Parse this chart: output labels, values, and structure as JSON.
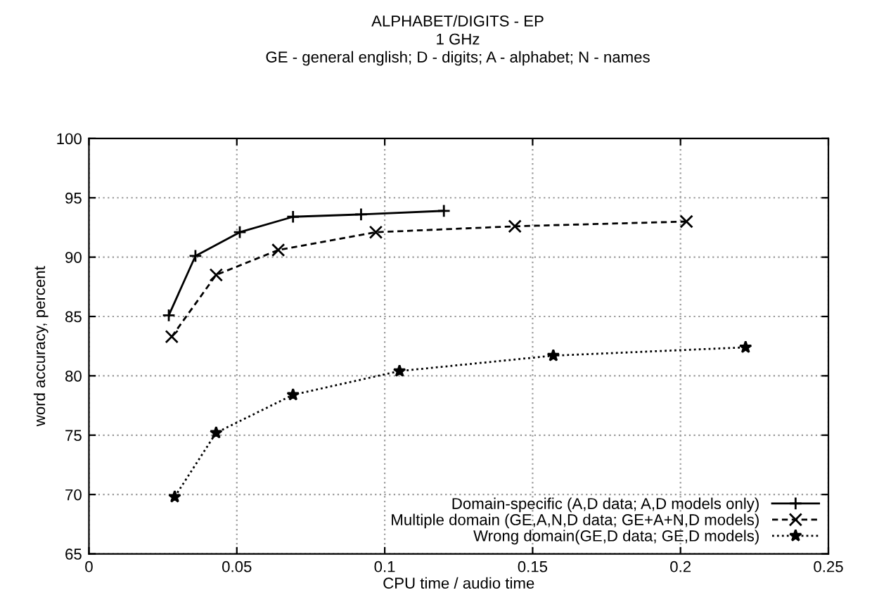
{
  "chart_data": {
    "type": "line",
    "title": "ALPHABET/DIGITS - EP",
    "subtitle": "1 GHz\nGE - general english; D - digits; A - alphabet; N - names",
    "xlabel": "CPU time / audio time",
    "ylabel": "word accuracy, percent",
    "xlim": [
      0,
      0.25
    ],
    "xticks": [
      0,
      0.05,
      0.1,
      0.15,
      0.2,
      0.25
    ],
    "ylim": [
      65,
      100
    ],
    "yticks": [
      65,
      70,
      75,
      80,
      85,
      90,
      95,
      100
    ],
    "grid": true,
    "legend": "bottom right",
    "series": [
      {
        "name": "Domain-specific (A,D data; A,D models only)",
        "color": "#000000",
        "marker": "cross",
        "line_style": "solid",
        "x": [
          0.027,
          0.036,
          0.051,
          0.069,
          0.092,
          0.12
        ],
        "values": [
          85.1,
          90.1,
          92.1,
          93.4,
          93.6,
          93.9
        ]
      },
      {
        "name": "Multiple domain (GE,A,N,D data; GE+A+N,D models)",
        "color": "#000000",
        "marker": "x",
        "line_style": "dashed",
        "x": [
          0.028,
          0.043,
          0.064,
          0.097,
          0.144,
          0.202
        ],
        "values": [
          83.3,
          88.5,
          90.6,
          92.1,
          92.6,
          93.0
        ]
      },
      {
        "name": "Wrong domain(GE,D data; GE,D models)",
        "color": "#000000",
        "marker": "star",
        "line_style": "dotted",
        "x": [
          0.029,
          0.043,
          0.069,
          0.105,
          0.157,
          0.222
        ],
        "values": [
          69.8,
          75.2,
          78.4,
          80.4,
          81.7,
          82.4
        ]
      }
    ]
  }
}
